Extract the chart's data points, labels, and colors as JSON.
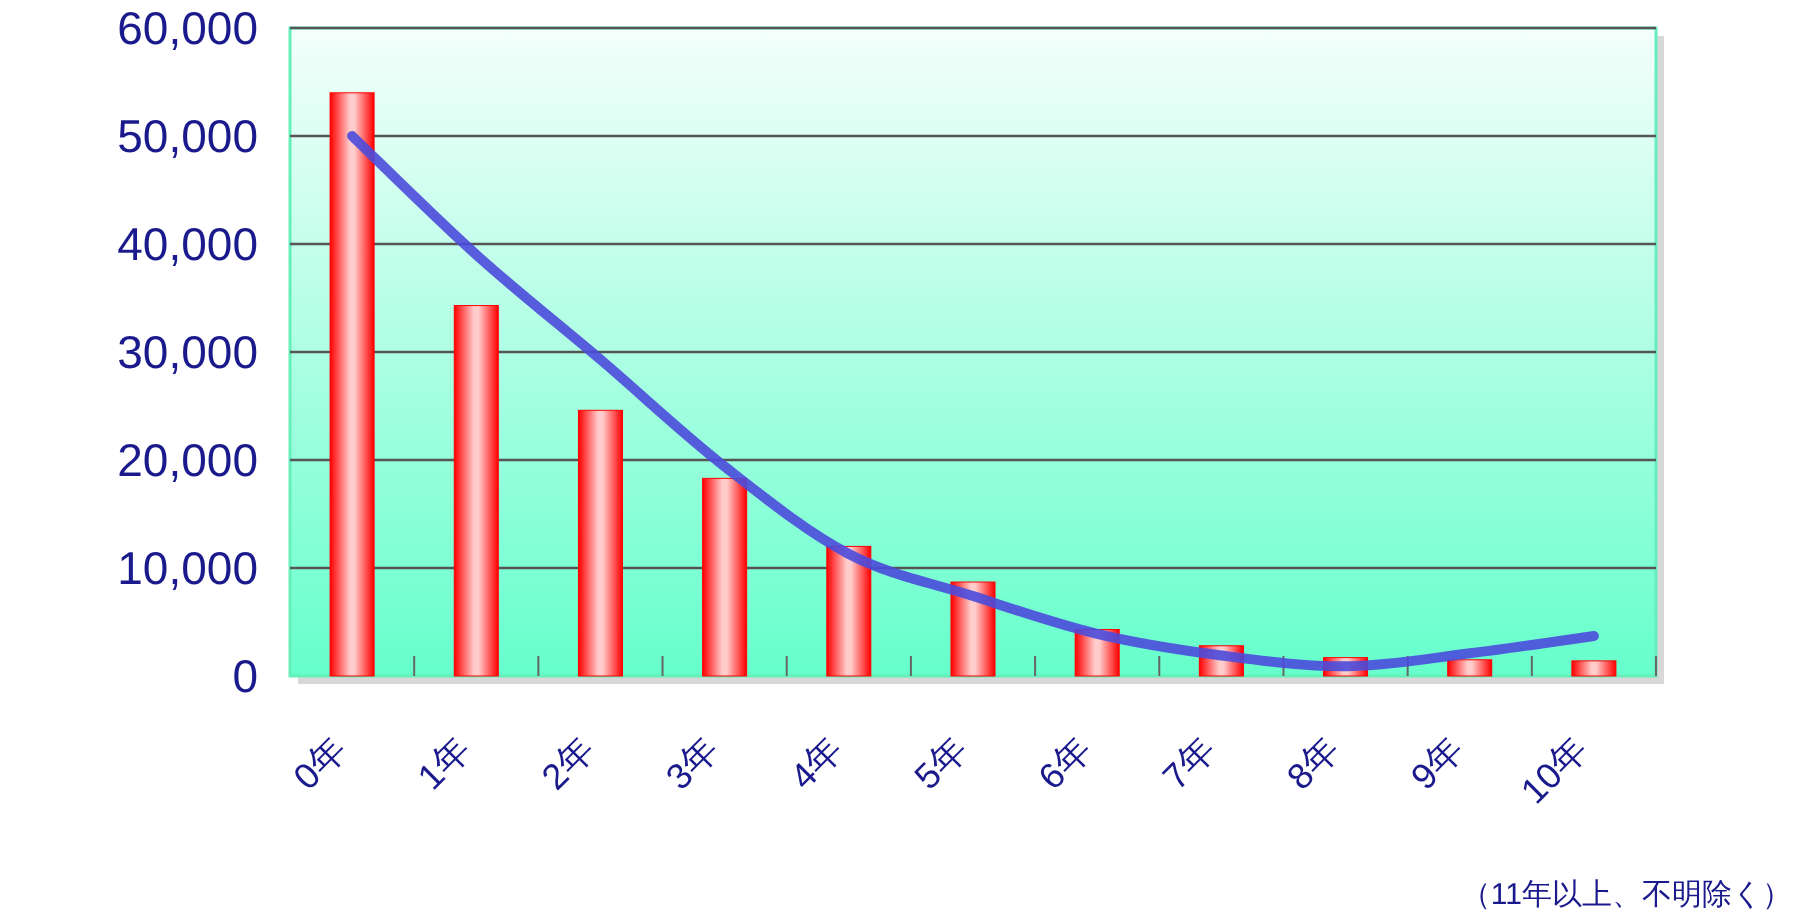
{
  "chart_data": {
    "type": "bar",
    "categories": [
      "0年",
      "1年",
      "2年",
      "3年",
      "4年",
      "5年",
      "6年",
      "7年",
      "8年",
      "9年",
      "10年"
    ],
    "series": [
      {
        "color": "#ff0000",
        "values": [
          54000,
          34300,
          24600,
          18300,
          12000,
          8700,
          4300,
          2800,
          1700,
          1500,
          1400
        ]
      },
      {
        "type": "line",
        "color": "#4b4bdc",
        "values": [
          50000,
          39000,
          29300,
          19400,
          11300,
          7400,
          3900,
          1900,
          900,
          2100,
          3700
        ]
      }
    ],
    "ylim": [
      0,
      60000
    ],
    "yticks": [
      0,
      {
        "value": 10000,
        "label": "10,000"
      },
      {
        "value": 20000,
        "label": "20,000"
      },
      {
        "value": 30000,
        "label": "30,000"
      },
      {
        "value": 40000,
        "label": "40,000"
      },
      {
        "value": 50000,
        "label": "50,000"
      },
      {
        "value": 60000,
        "label": "60,000"
      }
    ],
    "grid": "y",
    "annotations": [
      "（11年以上、不明除く）"
    ]
  }
}
